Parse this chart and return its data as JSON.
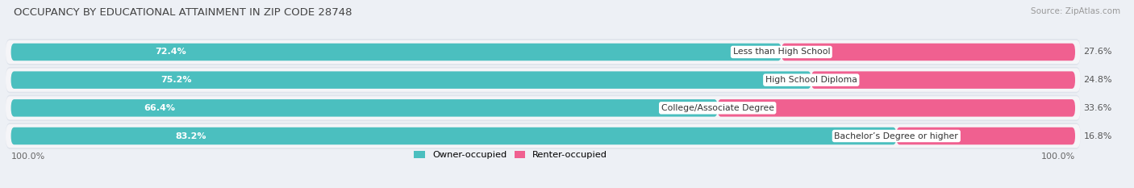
{
  "title": "OCCUPANCY BY EDUCATIONAL ATTAINMENT IN ZIP CODE 28748",
  "source": "Source: ZipAtlas.com",
  "categories": [
    "Less than High School",
    "High School Diploma",
    "College/Associate Degree",
    "Bachelor’s Degree or higher"
  ],
  "owner_pct": [
    72.4,
    75.2,
    66.4,
    83.2
  ],
  "renter_pct": [
    27.6,
    24.8,
    33.6,
    16.8
  ],
  "owner_color": "#4bbfbf",
  "renter_color_dark": "#f06090",
  "renter_color_light": "#f8a0c0",
  "bg_color": "#edf0f5",
  "row_bg_outer": "#e0e4ec",
  "row_bg_inner": "#f5f5f8",
  "title_color": "#444444",
  "bar_height": 0.62,
  "legend_owner": "Owner-occupied",
  "legend_renter": "Renter-occupied"
}
